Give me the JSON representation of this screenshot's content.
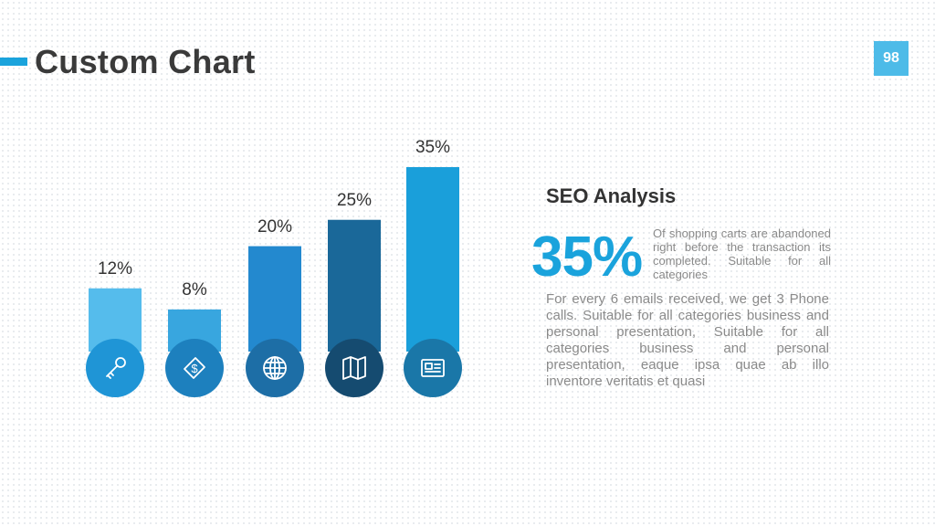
{
  "header": {
    "title": "Custom Chart",
    "page_number": "98"
  },
  "colors": {
    "accent": "#1aa3dc",
    "badge": "#4dbbe8",
    "title_text": "#3a3a3a",
    "body_text": "#8a8a8a"
  },
  "chart_data": {
    "type": "bar",
    "categories": [
      "",
      "",
      "",
      "",
      ""
    ],
    "values": [
      12,
      8,
      20,
      25,
      35
    ],
    "data_labels": [
      "12%",
      "8%",
      "20%",
      "25%",
      "35%"
    ],
    "ylim": [
      0,
      35
    ],
    "grid": false,
    "bar_colors": [
      "#55bcec",
      "#38a6df",
      "#2389cf",
      "#1a6899",
      "#1a9fda"
    ],
    "icon_colors": [
      "#1f95d6",
      "#1d80be",
      "#1d6ea6",
      "#154b70",
      "#1a77a8"
    ],
    "icons": [
      "key-icon",
      "money-icon",
      "globe-icon",
      "map-icon",
      "document-icon"
    ]
  },
  "seo": {
    "title": "SEO Analysis",
    "big_percent": "35%",
    "short_text": "Of shopping carts are abandoned right before the transaction its completed. Suitable for all categories",
    "body_text": "For every 6 emails received, we get 3 Phone calls. Suitable for all categories business and personal presentation, Suitable for all categories business and personal presentation, eaque ipsa quae ab illo inventore veritatis et quasi"
  }
}
